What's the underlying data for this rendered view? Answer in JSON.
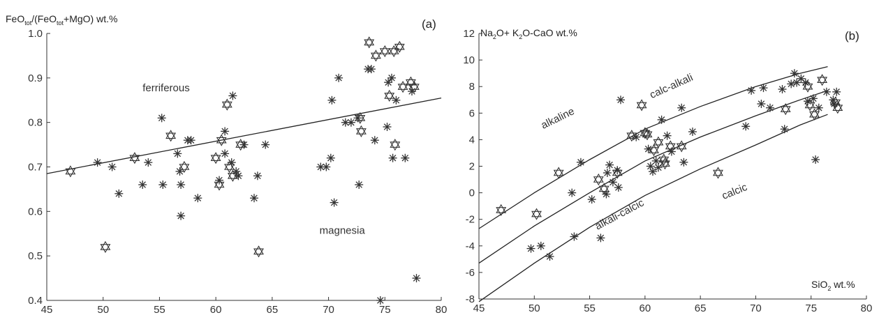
{
  "chart_data": [
    {
      "type": "scatter",
      "panel_label": "(a)",
      "ylabel": {
        "main": "FeO",
        "sub1": "tot",
        "mid": "/(FeO",
        "sub2": "tot",
        "end": "+MgO) wt.%"
      },
      "xlabel": "",
      "xlim": [
        45,
        80
      ],
      "ylim": [
        0.4,
        1.0
      ],
      "x_ticks": [
        "45",
        "50",
        "55",
        "60",
        "65",
        "70",
        "75",
        "80"
      ],
      "y_ticks": [
        "0.4",
        "0.5",
        "0.6",
        "0.7",
        "0.8",
        "0.9",
        "1.0"
      ],
      "field_labels": [
        {
          "text": "ferriferous",
          "x": 53.5,
          "y": 0.87
        },
        {
          "text": "magnesia",
          "x": 69.2,
          "y": 0.55
        }
      ],
      "boundary": [
        [
          45,
          0.685
        ],
        [
          80,
          0.855
        ]
      ],
      "series": [
        {
          "marker": "star-of-david",
          "points": [
            [
              47.1,
              0.69
            ],
            [
              50.2,
              0.52
            ],
            [
              52.8,
              0.72
            ],
            [
              56.0,
              0.77
            ],
            [
              57.2,
              0.7
            ],
            [
              60.0,
              0.72
            ],
            [
              60.5,
              0.76
            ],
            [
              61.0,
              0.84
            ],
            [
              61.2,
              0.7
            ],
            [
              61.5,
              0.68
            ],
            [
              60.3,
              0.66
            ],
            [
              62.2,
              0.75
            ],
            [
              63.8,
              0.51
            ],
            [
              72.8,
              0.81
            ],
            [
              72.9,
              0.78
            ],
            [
              73.6,
              0.98
            ],
            [
              74.2,
              0.95
            ],
            [
              75.0,
              0.96
            ],
            [
              75.4,
              0.86
            ],
            [
              75.8,
              0.96
            ],
            [
              75.9,
              0.75
            ],
            [
              76.3,
              0.97
            ],
            [
              76.6,
              0.88
            ],
            [
              77.3,
              0.89
            ],
            [
              77.6,
              0.88
            ]
          ]
        },
        {
          "marker": "asterisk",
          "points": [
            [
              49.5,
              0.71
            ],
            [
              50.8,
              0.7
            ],
            [
              51.4,
              0.64
            ],
            [
              53.5,
              0.66
            ],
            [
              54.0,
              0.71
            ],
            [
              55.3,
              0.66
            ],
            [
              55.2,
              0.81
            ],
            [
              56.6,
              0.73
            ],
            [
              56.8,
              0.69
            ],
            [
              56.9,
              0.59
            ],
            [
              56.9,
              0.66
            ],
            [
              57.5,
              0.76
            ],
            [
              57.8,
              0.76
            ],
            [
              58.4,
              0.63
            ],
            [
              60.3,
              0.67
            ],
            [
              60.8,
              0.73
            ],
            [
              60.8,
              0.78
            ],
            [
              61.4,
              0.71
            ],
            [
              61.5,
              0.86
            ],
            [
              61.8,
              0.69
            ],
            [
              62.0,
              0.68
            ],
            [
              62.5,
              0.75
            ],
            [
              63.4,
              0.63
            ],
            [
              63.7,
              0.68
            ],
            [
              64.4,
              0.75
            ],
            [
              69.3,
              0.7
            ],
            [
              69.8,
              0.7
            ],
            [
              70.2,
              0.72
            ],
            [
              70.3,
              0.85
            ],
            [
              70.5,
              0.62
            ],
            [
              70.9,
              0.9
            ],
            [
              71.5,
              0.8
            ],
            [
              72.0,
              0.8
            ],
            [
              72.6,
              0.81
            ],
            [
              72.7,
              0.66
            ],
            [
              73.5,
              0.92
            ],
            [
              73.8,
              0.92
            ],
            [
              74.1,
              0.76
            ],
            [
              74.6,
              0.4
            ],
            [
              75.2,
              0.79
            ],
            [
              75.3,
              0.89
            ],
            [
              75.6,
              0.9
            ],
            [
              75.7,
              0.72
            ],
            [
              76.0,
              0.85
            ],
            [
              76.8,
              0.72
            ],
            [
              77.4,
              0.87
            ],
            [
              77.8,
              0.45
            ]
          ]
        }
      ]
    },
    {
      "type": "scatter",
      "panel_label": "(b)",
      "ylabel": {
        "a": "Na",
        "sa": "2",
        "b": "O+ K",
        "sb": "2",
        "c": "O-CaO wt.%"
      },
      "xlabel": {
        "a": "SiO",
        "sa": "2",
        "b": " wt.%"
      },
      "xlim": [
        45,
        80
      ],
      "ylim": [
        -8,
        12
      ],
      "x_ticks": [
        "45",
        "50",
        "55",
        "60",
        "65",
        "70",
        "75",
        "80"
      ],
      "y_ticks": [
        "-8",
        "-6",
        "-4",
        "-2",
        "0",
        "2",
        "4",
        "6",
        "8",
        "10",
        "12"
      ],
      "field_labels": [
        {
          "text": "alkaline",
          "x": 50.8,
          "y": 4.8,
          "angle": -26
        },
        {
          "text": "calc-alkali",
          "x": 60.6,
          "y": 7.1,
          "angle": -24
        },
        {
          "text": "alkali-calcic",
          "x": 55.7,
          "y": -2.8,
          "angle": -28
        },
        {
          "text": "calcic",
          "x": 67.1,
          "y": -0.5,
          "angle": -22
        }
      ],
      "boundaries": [
        [
          [
            45,
            -2.7
          ],
          [
            50,
            0.0
          ],
          [
            55,
            2.5
          ],
          [
            60,
            4.8
          ],
          [
            65,
            6.5
          ],
          [
            70,
            8.0
          ],
          [
            74,
            9.0
          ],
          [
            76.5,
            9.5
          ]
        ],
        [
          [
            45,
            -5.3
          ],
          [
            50,
            -2.5
          ],
          [
            55,
            0.0
          ],
          [
            60,
            2.4
          ],
          [
            65,
            4.2
          ],
          [
            70,
            5.8
          ],
          [
            74,
            7.0
          ],
          [
            76.5,
            7.7
          ]
        ],
        [
          [
            45,
            -8.2
          ],
          [
            50,
            -5.3
          ],
          [
            55,
            -2.6
          ],
          [
            60,
            -0.2
          ],
          [
            65,
            1.8
          ],
          [
            70,
            3.6
          ],
          [
            74,
            5.1
          ],
          [
            76.5,
            5.9
          ]
        ]
      ],
      "series": [
        {
          "marker": "star-of-david",
          "points": [
            [
              47.0,
              -1.3
            ],
            [
              50.2,
              -1.6
            ],
            [
              52.2,
              1.5
            ],
            [
              55.8,
              1.0
            ],
            [
              56.3,
              0.3
            ],
            [
              57.5,
              1.5
            ],
            [
              58.8,
              4.3
            ],
            [
              59.7,
              6.6
            ],
            [
              60.0,
              4.5
            ],
            [
              60.2,
              4.4
            ],
            [
              60.8,
              3.2
            ],
            [
              61.2,
              3.8
            ],
            [
              61.7,
              2.5
            ],
            [
              61.8,
              2.2
            ],
            [
              62.3,
              3.5
            ],
            [
              63.3,
              3.5
            ],
            [
              66.6,
              1.5
            ],
            [
              72.7,
              6.3
            ],
            [
              74.7,
              8.0
            ],
            [
              74.9,
              6.6
            ],
            [
              75.3,
              5.9
            ],
            [
              76.0,
              8.5
            ],
            [
              77.2,
              6.8
            ],
            [
              77.4,
              6.4
            ]
          ]
        },
        {
          "marker": "asterisk",
          "points": [
            [
              49.7,
              -4.2
            ],
            [
              50.6,
              -4.0
            ],
            [
              51.4,
              -4.8
            ],
            [
              53.4,
              0.0
            ],
            [
              53.6,
              -3.3
            ],
            [
              54.2,
              2.3
            ],
            [
              55.2,
              -0.5
            ],
            [
              56.0,
              -3.4
            ],
            [
              56.5,
              -0.1
            ],
            [
              56.6,
              1.5
            ],
            [
              56.8,
              2.1
            ],
            [
              57.1,
              0.8
            ],
            [
              57.5,
              1.7
            ],
            [
              57.6,
              0.4
            ],
            [
              57.8,
              7.0
            ],
            [
              59.2,
              4.2
            ],
            [
              60.3,
              3.3
            ],
            [
              60.5,
              2.0
            ],
            [
              60.7,
              1.6
            ],
            [
              61.0,
              2.4
            ],
            [
              61.2,
              1.9
            ],
            [
              61.5,
              5.5
            ],
            [
              62.0,
              4.3
            ],
            [
              62.4,
              3.1
            ],
            [
              63.3,
              6.4
            ],
            [
              63.5,
              2.3
            ],
            [
              64.3,
              4.6
            ],
            [
              69.1,
              5.0
            ],
            [
              69.6,
              7.7
            ],
            [
              70.5,
              6.7
            ],
            [
              70.7,
              7.9
            ],
            [
              71.3,
              6.4
            ],
            [
              72.4,
              7.8
            ],
            [
              72.6,
              4.8
            ],
            [
              73.2,
              8.2
            ],
            [
              73.5,
              9.0
            ],
            [
              73.7,
              8.3
            ],
            [
              74.1,
              8.6
            ],
            [
              74.5,
              8.3
            ],
            [
              74.7,
              6.9
            ],
            [
              75.2,
              7.1
            ],
            [
              75.4,
              2.5
            ],
            [
              75.7,
              6.4
            ],
            [
              76.4,
              7.6
            ],
            [
              77.0,
              7.0
            ],
            [
              77.1,
              6.7
            ],
            [
              77.3,
              7.6
            ]
          ]
        }
      ]
    }
  ]
}
